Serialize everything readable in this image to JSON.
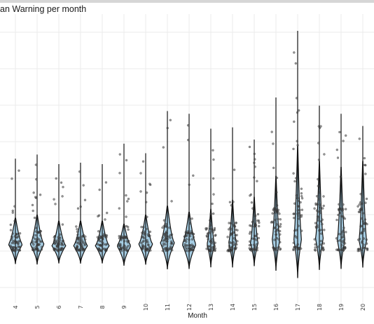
{
  "chart_data": {
    "type": "violin",
    "title": "an Warning per month",
    "xlabel": "Month",
    "ylabel": "",
    "categories": [
      "4",
      "5",
      "6",
      "7",
      "8",
      "9",
      "10",
      "11",
      "12",
      "13",
      "14",
      "15",
      "16",
      "17",
      "18",
      "19",
      "20"
    ],
    "grid": true,
    "y_relative_range": [
      0,
      1
    ],
    "series": [
      {
        "month": "4",
        "min": 0.0,
        "max": 0.68,
        "median": 0.05,
        "q1": 0.02,
        "q3": 0.11
      },
      {
        "month": "5",
        "min": 0.0,
        "max": 0.71,
        "median": 0.05,
        "q1": 0.02,
        "q3": 0.12
      },
      {
        "month": "6",
        "min": 0.0,
        "max": 0.64,
        "median": 0.04,
        "q1": 0.02,
        "q3": 0.1
      },
      {
        "month": "7",
        "min": 0.0,
        "max": 0.65,
        "median": 0.04,
        "q1": 0.02,
        "q3": 0.1
      },
      {
        "month": "8",
        "min": 0.0,
        "max": 0.64,
        "median": 0.04,
        "q1": 0.02,
        "q3": 0.1
      },
      {
        "month": "9",
        "min": 0.0,
        "max": 0.79,
        "median": 0.04,
        "q1": 0.02,
        "q3": 0.09
      },
      {
        "month": "10",
        "min": 0.0,
        "max": 0.72,
        "median": 0.05,
        "q1": 0.02,
        "q3": 0.12
      },
      {
        "month": "11",
        "min": 0.0,
        "max": 1.03,
        "median": 0.06,
        "q1": 0.03,
        "q3": 0.15
      },
      {
        "month": "12",
        "min": 0.0,
        "max": 1.01,
        "median": 0.05,
        "q1": 0.02,
        "q3": 0.13
      },
      {
        "month": "13",
        "min": 0.0,
        "max": 0.9,
        "median": 0.05,
        "q1": 0.02,
        "q3": 0.14
      },
      {
        "month": "14",
        "min": 0.0,
        "max": 0.91,
        "median": 0.06,
        "q1": 0.02,
        "q3": 0.17
      },
      {
        "month": "15",
        "min": 0.0,
        "max": 0.82,
        "median": 0.06,
        "q1": 0.02,
        "q3": 0.18
      },
      {
        "month": "16",
        "min": 0.0,
        "max": 1.13,
        "median": 0.08,
        "q1": 0.03,
        "q3": 0.25
      },
      {
        "month": "17",
        "min": 0.0,
        "max": 1.62,
        "median": 0.09,
        "q1": 0.03,
        "q3": 0.35
      },
      {
        "month": "18",
        "min": 0.0,
        "max": 1.07,
        "median": 0.09,
        "q1": 0.03,
        "q3": 0.3
      },
      {
        "month": "19",
        "min": 0.0,
        "max": 1.01,
        "median": 0.08,
        "q1": 0.03,
        "q3": 0.28
      },
      {
        "month": "20",
        "min": 0.0,
        "max": 0.92,
        "median": 0.08,
        "q1": 0.03,
        "q3": 0.3
      }
    ],
    "colors": {
      "violin_fill": "#a6cde3",
      "outline": "#111111",
      "points": "#444444",
      "grid": "#ebebeb",
      "topbar": "#d6d6d6"
    }
  }
}
